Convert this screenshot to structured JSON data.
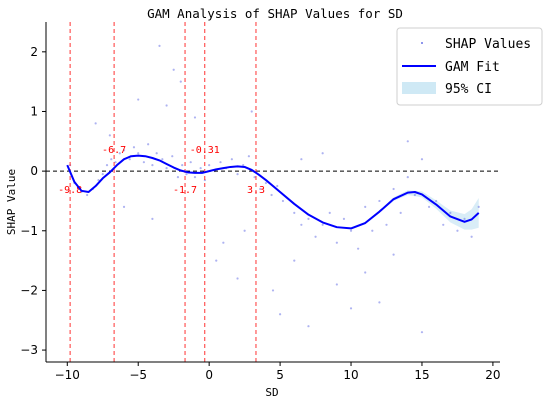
{
  "chart_data": {
    "type": "scatter",
    "title": "GAM Analysis of SHAP Values for SD",
    "xlabel": "SD",
    "ylabel": "SHAP Value",
    "xlim": [
      -11.5,
      20.5
    ],
    "ylim": [
      -3.2,
      2.5
    ],
    "xticks": [
      -10,
      -5,
      0,
      5,
      10,
      15,
      20
    ],
    "yticks": [
      -3,
      -2,
      -1,
      0,
      1,
      2
    ],
    "zero_line": 0,
    "colors": {
      "points": "#6b74e6",
      "fit": "#0000ff",
      "ci": "#cfe9f5",
      "vline": "#ff3333",
      "zero": "#000000"
    },
    "legend": {
      "placement": "top-right",
      "items": [
        "SHAP Values",
        "GAM Fit",
        "95% CI"
      ]
    },
    "vlines": [
      {
        "x": -9.8,
        "label": "-9.8",
        "label_side": "below"
      },
      {
        "x": -6.7,
        "label": "-6.7",
        "label_side": "above"
      },
      {
        "x": -1.7,
        "label": "-1.7",
        "label_side": "below"
      },
      {
        "x": -0.31,
        "label": "-0.31",
        "label_side": "above"
      },
      {
        "x": 3.3,
        "label": "3.3",
        "label_side": "below"
      }
    ],
    "series": [
      {
        "name": "GAM Fit",
        "x": [
          -10,
          -9.5,
          -9,
          -8.5,
          -8,
          -7.5,
          -7,
          -6.5,
          -6,
          -5.5,
          -5,
          -4.5,
          -4,
          -3.5,
          -3,
          -2.5,
          -2,
          -1.5,
          -1,
          -0.5,
          0,
          0.5,
          1,
          1.5,
          2,
          2.5,
          3,
          3.5,
          4,
          4.5,
          5,
          6,
          7,
          8,
          9,
          10,
          11,
          12,
          13,
          14,
          14.5,
          15,
          16,
          17,
          18,
          18.5,
          19
        ],
        "y": [
          0.1,
          -0.18,
          -0.33,
          -0.35,
          -0.25,
          -0.12,
          -0.02,
          0.1,
          0.2,
          0.25,
          0.26,
          0.25,
          0.22,
          0.18,
          0.12,
          0.06,
          0.01,
          -0.02,
          -0.03,
          -0.03,
          0.0,
          0.03,
          0.05,
          0.07,
          0.08,
          0.07,
          0.02,
          -0.06,
          -0.15,
          -0.25,
          -0.35,
          -0.55,
          -0.73,
          -0.86,
          -0.94,
          -0.96,
          -0.87,
          -0.68,
          -0.47,
          -0.36,
          -0.35,
          -0.39,
          -0.56,
          -0.76,
          -0.85,
          -0.81,
          -0.7
        ]
      },
      {
        "name": "95% CI",
        "x": [
          10,
          11,
          12,
          13,
          14,
          15,
          16,
          17,
          18,
          18.5,
          19
        ],
        "lower": [
          -0.98,
          -0.89,
          -0.7,
          -0.5,
          -0.4,
          -0.44,
          -0.63,
          -0.86,
          -0.98,
          -0.98,
          -0.95
        ],
        "upper": [
          -0.94,
          -0.85,
          -0.66,
          -0.44,
          -0.32,
          -0.34,
          -0.49,
          -0.66,
          -0.72,
          -0.64,
          -0.45
        ]
      },
      {
        "name": "SHAP Values",
        "x": [
          -9.8,
          -9.5,
          -9,
          -8.6,
          -8.2,
          -7.8,
          -7.5,
          -7.2,
          -6.9,
          -6.6,
          -6.3,
          -6,
          -5.6,
          -5.3,
          -5,
          -4.6,
          -4.3,
          -4,
          -3.7,
          -3.3,
          -3,
          -2.6,
          -2.2,
          -1.9,
          -1.6,
          -1.3,
          -1,
          -0.6,
          -0.3,
          0,
          0.4,
          0.8,
          1.2,
          1.6,
          2,
          2.4,
          2.8,
          3.2,
          3.6,
          4,
          4.4,
          4.8,
          5.2,
          6,
          6.5,
          7,
          7.5,
          8,
          8.5,
          9,
          9.5,
          10,
          10.5,
          11,
          11.5,
          12,
          12.5,
          13,
          13.5,
          14,
          14.5,
          15,
          15.5,
          16,
          16.5,
          17,
          17.5,
          18,
          18.5,
          19,
          -8,
          -5,
          -3.5,
          -2,
          0.5,
          2,
          5,
          7,
          9,
          12,
          15,
          -6,
          -4,
          -1,
          1,
          3,
          6,
          8,
          11,
          14,
          -2.5,
          4.5,
          13,
          -7,
          -3,
          2.5,
          6.5,
          10
        ],
        "y": [
          0.1,
          -0.2,
          -0.35,
          -0.4,
          -0.3,
          -0.15,
          -0.05,
          0.1,
          0.2,
          0.15,
          0.3,
          0.35,
          0.2,
          0.4,
          0.3,
          0.15,
          0.45,
          0.1,
          0.3,
          0.2,
          0.05,
          0.25,
          -0.1,
          0.1,
          -0.05,
          0.15,
          -0.1,
          0.05,
          -0.15,
          0.1,
          0.0,
          0.15,
          0.05,
          0.2,
          -0.05,
          0.1,
          0.25,
          -0.1,
          -0.3,
          -0.2,
          -0.4,
          -0.25,
          -0.5,
          -0.7,
          -0.9,
          -0.8,
          -1.1,
          -0.9,
          -0.7,
          -1.2,
          -0.8,
          -1.0,
          -1.3,
          -0.6,
          -1.0,
          -0.5,
          -0.9,
          -0.3,
          -0.7,
          -0.1,
          -0.4,
          0.2,
          -0.6,
          -0.5,
          -0.9,
          -0.7,
          -1.0,
          -0.8,
          -1.1,
          -0.6,
          0.8,
          1.2,
          2.1,
          1.5,
          -1.5,
          -1.8,
          -2.4,
          -2.6,
          -1.9,
          -2.2,
          -2.7,
          -0.6,
          -0.8,
          0.9,
          -1.2,
          1.0,
          -1.5,
          0.3,
          -1.7,
          0.5,
          1.7,
          -2.0,
          -1.4,
          0.6,
          1.1,
          -1.0,
          0.2,
          -2.3
        ]
      }
    ]
  }
}
